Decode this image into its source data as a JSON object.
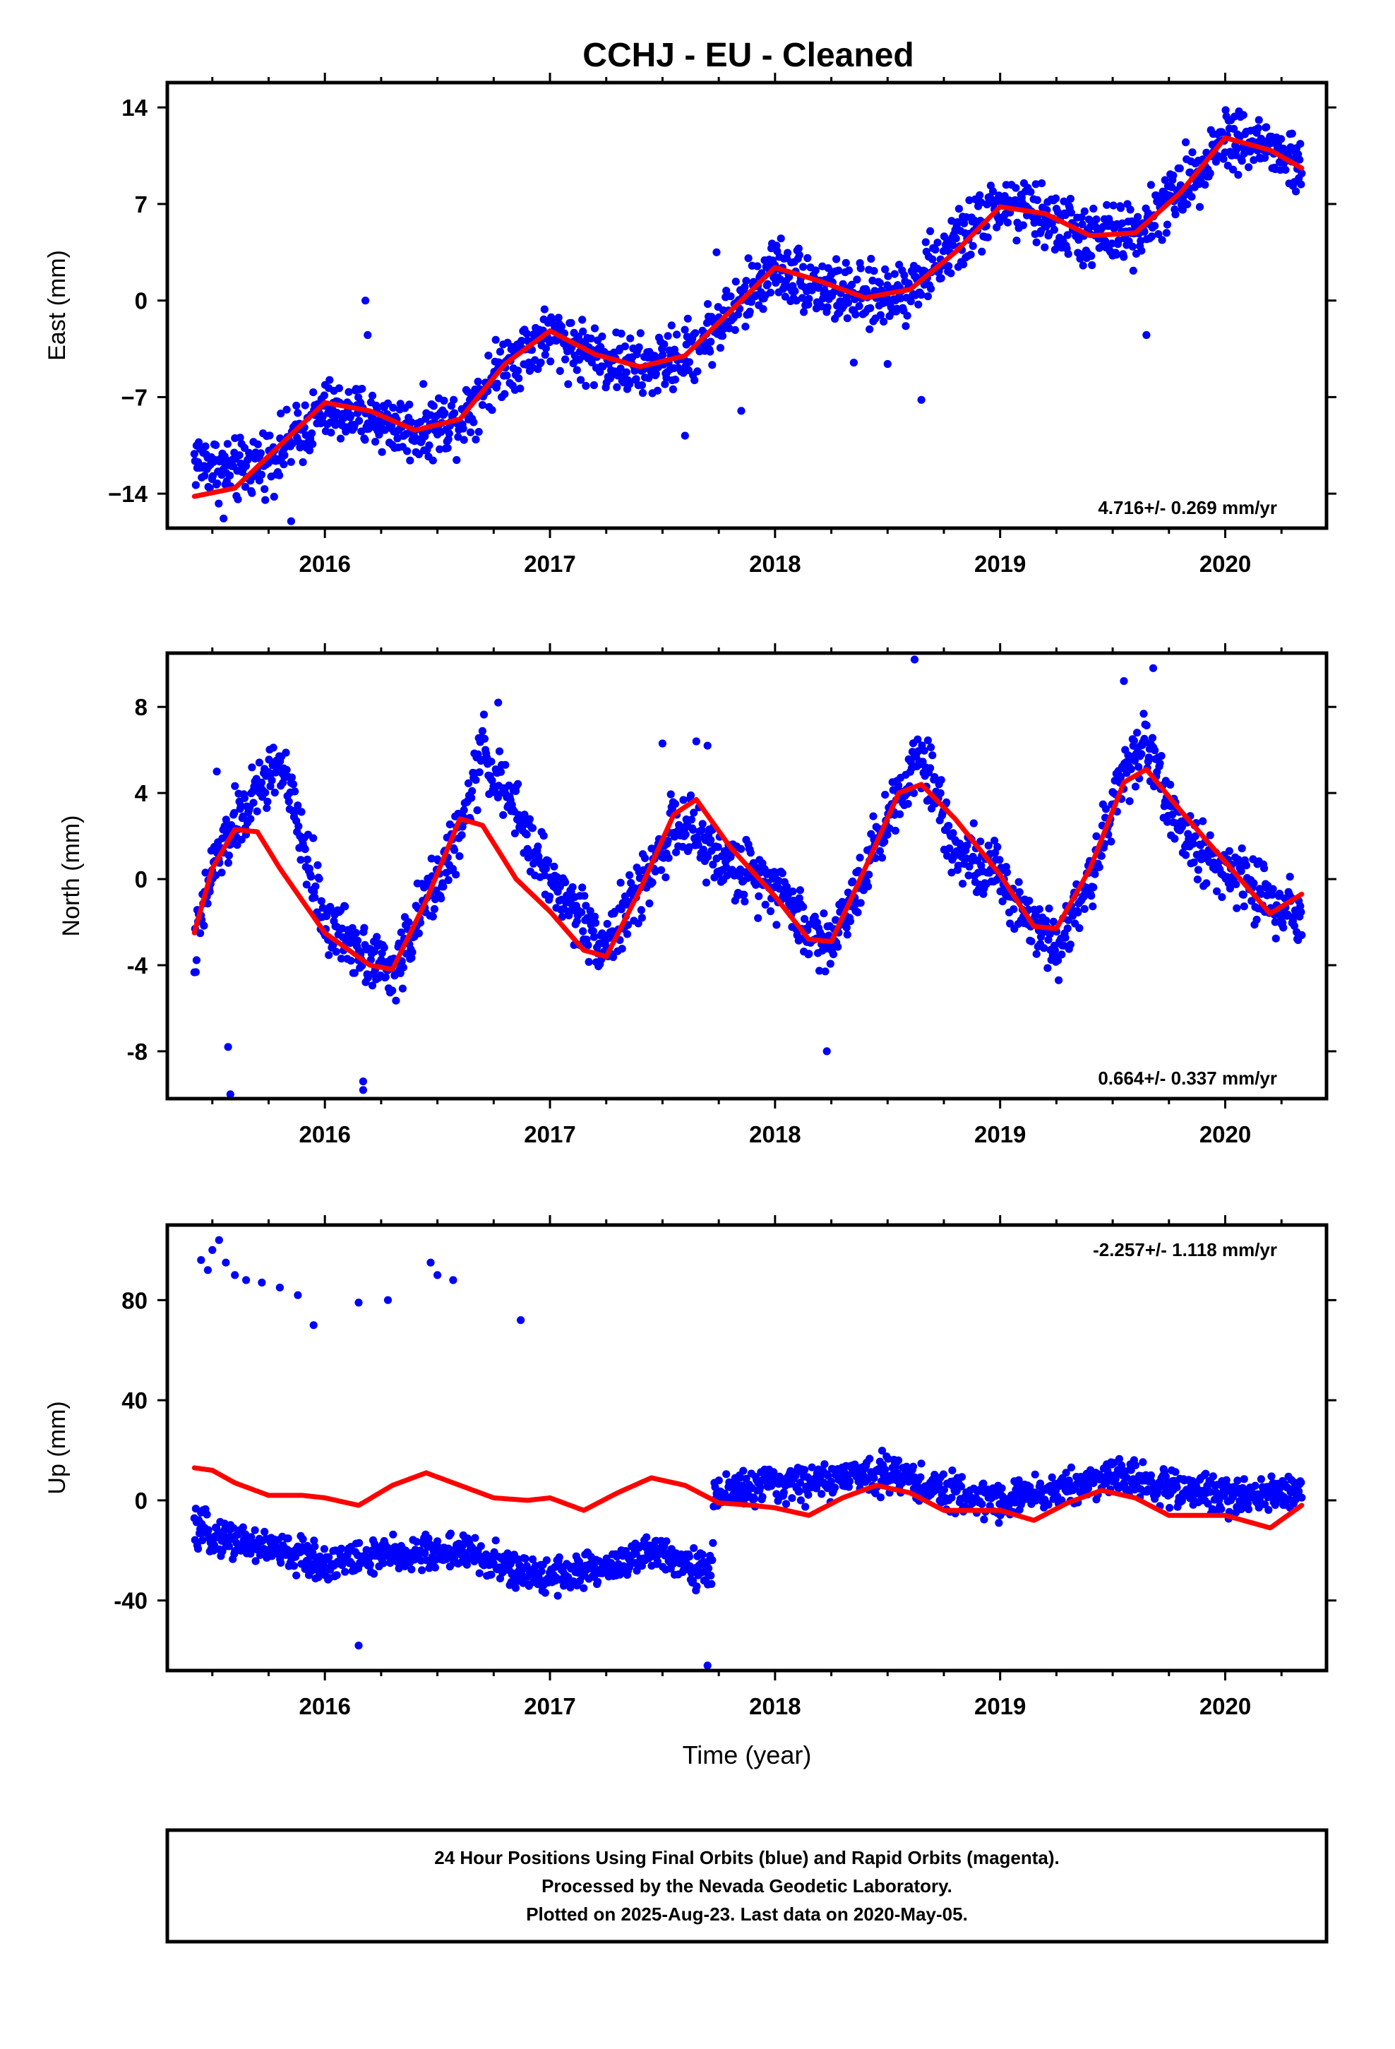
{
  "title": "CCHJ  - EU - Cleaned",
  "footer": {
    "line1": "24 Hour Positions Using Final Orbits (blue) and Rapid Orbits (magenta).",
    "line2": "Processed by the Nevada Geodetic Laboratory.",
    "line3": "Plotted on 2025-Aug-23. Last data on 2020-May-05."
  },
  "colors": {
    "data": "#0000ff",
    "model": "#ff0000",
    "frame": "#000000"
  },
  "chart_data": [
    {
      "type": "scatter",
      "ylabel": "East (mm)",
      "xlabel": "",
      "xlim": [
        2015.3,
        2020.45
      ],
      "ylim": [
        -16.5,
        15.8
      ],
      "xticks": [
        2016,
        2017,
        2018,
        2019,
        2020
      ],
      "yticks": [
        14,
        7,
        0,
        -7,
        -14
      ],
      "ytick_labels": [
        "14",
        "7",
        "0",
        "−7",
        "−14"
      ],
      "rate_label": "4.716+/- 0.269 mm/yr",
      "rate_position": "bottom-right",
      "data_start": 2015.42,
      "data_end": 2020.34,
      "model": {
        "name": "model",
        "x": [
          2015.42,
          2015.6,
          2015.8,
          2016.0,
          2016.2,
          2016.4,
          2016.6,
          2016.8,
          2017.0,
          2017.2,
          2017.4,
          2017.6,
          2017.8,
          2018.0,
          2018.2,
          2018.4,
          2018.6,
          2018.8,
          2019.0,
          2019.2,
          2019.4,
          2019.6,
          2019.8,
          2020.0,
          2020.2,
          2020.34
        ],
        "y": [
          -14.2,
          -13.6,
          -10.5,
          -7.4,
          -8.0,
          -9.4,
          -8.6,
          -4.6,
          -2.2,
          -3.9,
          -4.8,
          -4.0,
          -0.8,
          2.4,
          1.4,
          0.2,
          0.8,
          3.5,
          6.8,
          6.3,
          4.7,
          4.9,
          7.8,
          11.8,
          10.9,
          9.6
        ]
      },
      "scatter_trend": {
        "x": [
          2015.42,
          2015.6,
          2015.8,
          2016.0,
          2016.2,
          2016.4,
          2016.6,
          2016.8,
          2017.0,
          2017.2,
          2017.4,
          2017.6,
          2017.8,
          2018.0,
          2018.2,
          2018.4,
          2018.6,
          2018.8,
          2019.0,
          2019.2,
          2019.4,
          2019.6,
          2019.8,
          2020.0,
          2020.2,
          2020.34
        ],
        "y": [
          -11.5,
          -12.5,
          -11.0,
          -8.0,
          -8.5,
          -9.5,
          -8.5,
          -4.5,
          -2.5,
          -4.0,
          -5.0,
          -4.0,
          -1.0,
          2.5,
          1.0,
          0.0,
          1.0,
          4.0,
          7.0,
          6.0,
          4.5,
          5.0,
          8.0,
          12.0,
          11.0,
          9.5
        ]
      },
      "scatter_spread": 1.4,
      "outliers": [
        [
          2016.18,
          0.0
        ],
        [
          2016.19,
          -2.5
        ],
        [
          2017.85,
          -8.0
        ],
        [
          2018.35,
          -4.5
        ],
        [
          2018.5,
          -4.6
        ],
        [
          2018.65,
          -7.2
        ],
        [
          2019.65,
          -2.5
        ],
        [
          2015.55,
          -15.8
        ],
        [
          2015.85,
          -16.0
        ],
        [
          2017.6,
          -9.8
        ],
        [
          2017.74,
          3.5
        ]
      ]
    },
    {
      "type": "scatter",
      "ylabel": "North (mm)",
      "xlabel": "",
      "xlim": [
        2015.3,
        2020.45
      ],
      "ylim": [
        -10.2,
        10.5
      ],
      "xticks": [
        2016,
        2017,
        2018,
        2019,
        2020
      ],
      "yticks": [
        8,
        4,
        0,
        -4,
        -8
      ],
      "ytick_labels": [
        "8",
        "4",
        "0",
        "-4",
        "-8"
      ],
      "rate_label": "0.664+/- 0.337 mm/yr",
      "rate_position": "bottom-right",
      "data_start": 2015.42,
      "data_end": 2020.34,
      "model": {
        "name": "model",
        "x": [
          2015.42,
          2015.5,
          2015.6,
          2015.7,
          2015.8,
          2016.0,
          2016.2,
          2016.3,
          2016.45,
          2016.6,
          2016.7,
          2016.85,
          2017.0,
          2017.15,
          2017.25,
          2017.4,
          2017.55,
          2017.65,
          2017.8,
          2018.0,
          2018.15,
          2018.25,
          2018.4,
          2018.55,
          2018.65,
          2018.8,
          2019.0,
          2019.15,
          2019.25,
          2019.4,
          2019.55,
          2019.65,
          2019.8,
          2020.0,
          2020.2,
          2020.34
        ],
        "y": [
          -2.5,
          0.5,
          2.3,
          2.2,
          0.5,
          -2.5,
          -4.0,
          -4.2,
          -1.0,
          2.8,
          2.5,
          0.0,
          -1.5,
          -3.3,
          -3.6,
          -0.5,
          3.0,
          3.7,
          1.5,
          -0.8,
          -2.8,
          -2.9,
          0.5,
          4.0,
          4.4,
          2.8,
          0.2,
          -2.2,
          -2.3,
          0.5,
          4.5,
          5.1,
          3.2,
          0.8,
          -1.6,
          -0.7
        ]
      },
      "scatter_trend": {
        "x": [
          2015.42,
          2015.5,
          2015.6,
          2015.7,
          2015.8,
          2016.0,
          2016.2,
          2016.3,
          2016.45,
          2016.6,
          2016.7,
          2016.85,
          2017.0,
          2017.15,
          2017.25,
          2017.4,
          2017.55,
          2017.65,
          2017.8,
          2018.0,
          2018.15,
          2018.25,
          2018.4,
          2018.55,
          2018.65,
          2018.8,
          2019.0,
          2019.15,
          2019.25,
          2019.4,
          2019.55,
          2019.65,
          2019.8,
          2020.0,
          2020.2,
          2020.34
        ],
        "y": [
          -3.5,
          0.5,
          2.5,
          4.0,
          5.5,
          -2.0,
          -3.5,
          -4.5,
          -1.0,
          2.0,
          6.0,
          3.0,
          0.0,
          -2.0,
          -3.0,
          -0.5,
          2.5,
          2.0,
          0.5,
          0.0,
          -2.5,
          -3.0,
          0.5,
          4.0,
          6.0,
          1.5,
          0.0,
          -2.0,
          -3.0,
          0.0,
          5.0,
          6.5,
          2.0,
          0.5,
          -1.0,
          -1.5
        ]
      },
      "scatter_spread": 0.9,
      "outliers": [
        [
          2015.57,
          -7.8
        ],
        [
          2015.58,
          -10.0
        ],
        [
          2016.17,
          -9.4
        ],
        [
          2016.17,
          -9.8
        ],
        [
          2018.23,
          -8.0
        ],
        [
          2018.62,
          10.2
        ],
        [
          2019.68,
          9.8
        ],
        [
          2019.55,
          9.2
        ],
        [
          2015.52,
          5.0
        ],
        [
          2017.65,
          6.4
        ],
        [
          2017.7,
          6.2
        ],
        [
          2017.5,
          6.3
        ],
        [
          2016.77,
          8.2
        ]
      ]
    },
    {
      "type": "scatter",
      "ylabel": "Up (mm)",
      "xlabel": "Time (year)",
      "xlim": [
        2015.3,
        2020.45
      ],
      "ylim": [
        -68,
        110
      ],
      "xticks": [
        2016,
        2017,
        2018,
        2019,
        2020
      ],
      "yticks": [
        80,
        40,
        0,
        -40
      ],
      "ytick_labels": [
        "80",
        "40",
        "0",
        "-40"
      ],
      "rate_label": "-2.257+/- 1.118 mm/yr",
      "rate_position": "top-right",
      "data_start": 2015.42,
      "data_end": 2020.34,
      "model": {
        "name": "model",
        "x": [
          2015.42,
          2015.5,
          2015.6,
          2015.75,
          2015.9,
          2016.0,
          2016.15,
          2016.3,
          2016.45,
          2016.6,
          2016.75,
          2016.9,
          2017.0,
          2017.15,
          2017.3,
          2017.45,
          2017.6,
          2017.75,
          2017.9,
          2018.0,
          2018.15,
          2018.3,
          2018.45,
          2018.6,
          2018.75,
          2018.9,
          2019.0,
          2019.15,
          2019.3,
          2019.45,
          2019.6,
          2019.75,
          2019.9,
          2020.0,
          2020.2,
          2020.34
        ],
        "y": [
          13,
          12,
          7,
          2,
          2,
          1,
          -2,
          6,
          11,
          6,
          1,
          0,
          1,
          -4,
          3,
          9,
          6,
          -1,
          -2,
          -3,
          -6,
          1,
          6,
          3,
          -4,
          -4,
          -4,
          -8,
          -1,
          4,
          1,
          -6,
          -6,
          -6,
          -11,
          -2
        ]
      },
      "scatter_trend": {
        "x": [
          2015.42,
          2015.7,
          2016.0,
          2016.3,
          2016.6,
          2016.9,
          2017.2,
          2017.5,
          2017.72,
          2017.73,
          2018.0,
          2018.25,
          2018.5,
          2018.75,
          2019.0,
          2019.25,
          2019.5,
          2019.75,
          2020.0,
          2020.34
        ],
        "y": [
          -12,
          -18,
          -25,
          -22,
          -20,
          -30,
          -28,
          -20,
          -30,
          3,
          6,
          8,
          12,
          3,
          0,
          4,
          10,
          5,
          2,
          4
        ]
      },
      "scatter_spread": 4.5,
      "outliers": [
        [
          2015.45,
          96
        ],
        [
          2015.48,
          92
        ],
        [
          2015.5,
          100
        ],
        [
          2015.53,
          104
        ],
        [
          2015.56,
          95
        ],
        [
          2015.6,
          90
        ],
        [
          2015.65,
          88
        ],
        [
          2015.72,
          87
        ],
        [
          2015.8,
          85
        ],
        [
          2015.88,
          82
        ],
        [
          2015.95,
          70
        ],
        [
          2016.15,
          79
        ],
        [
          2016.28,
          80
        ],
        [
          2016.47,
          95
        ],
        [
          2016.5,
          90
        ],
        [
          2016.57,
          88
        ],
        [
          2016.87,
          72
        ],
        [
          2016.15,
          -58
        ],
        [
          2017.7,
          -66
        ]
      ]
    }
  ]
}
